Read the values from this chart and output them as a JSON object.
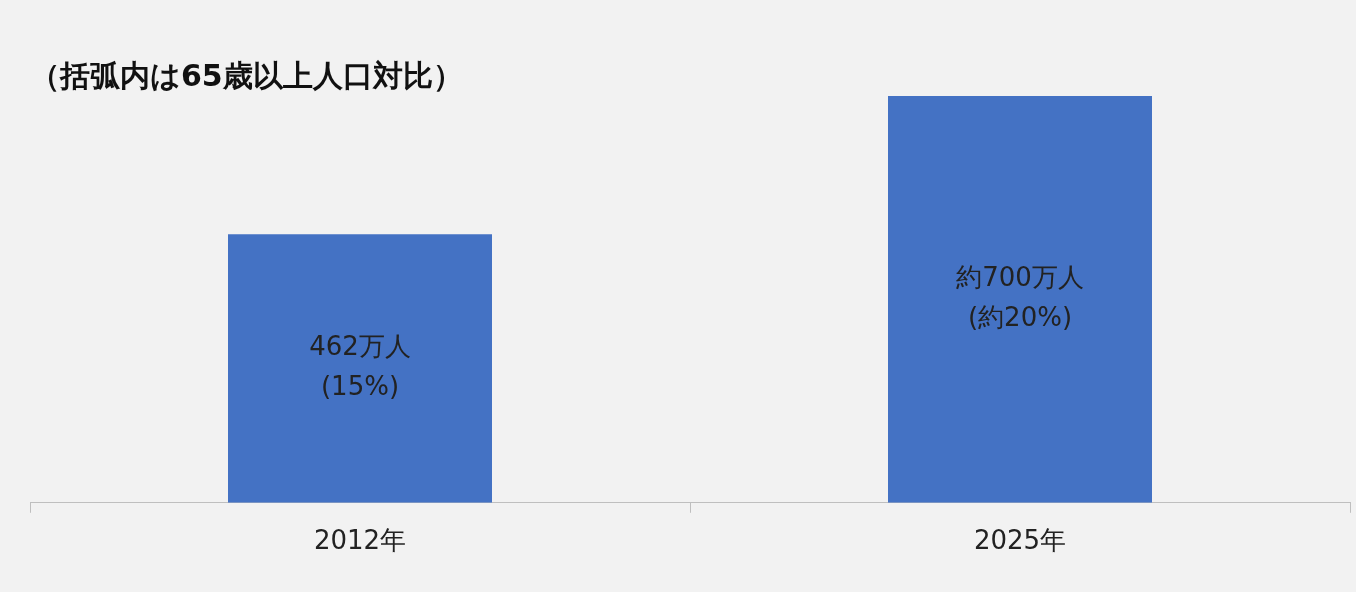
{
  "chart_data": {
    "type": "bar",
    "title": "（括弧内は65歳以上人口対比）",
    "categories": [
      "2012年",
      "2025年"
    ],
    "values": [
      462,
      700
    ],
    "value_labels": [
      "462万人\n(15%)",
      "約700万人\n(約20%)"
    ],
    "color": "#4472c4"
  }
}
